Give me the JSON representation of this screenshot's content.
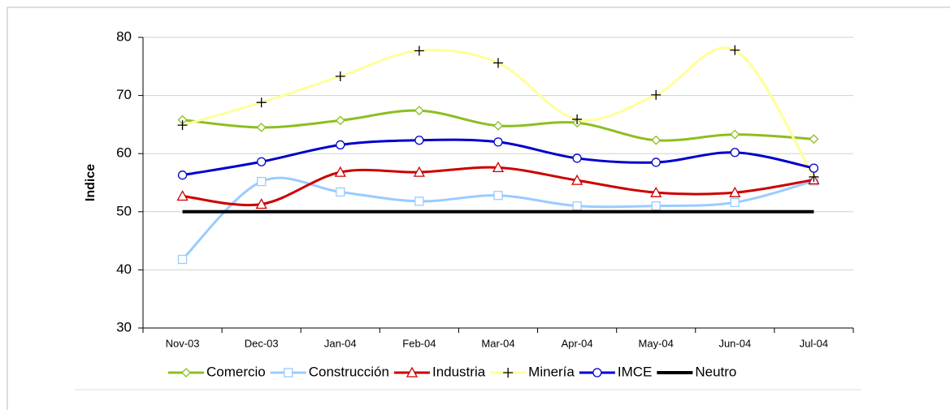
{
  "chart_data": {
    "type": "line",
    "y_label": "Indice",
    "categories": [
      "Nov-03",
      "Dec-03",
      "Jan-04",
      "Feb-04",
      "Mar-04",
      "Apr-04",
      "May-04",
      "Jun-04",
      "Jul-04"
    ],
    "series": [
      {
        "name": "Comercio",
        "color": "#8cbf1f",
        "marker": "diamond",
        "values": [
          65.8,
          64.5,
          65.7,
          67.4,
          64.8,
          65.3,
          62.3,
          63.3,
          62.5
        ]
      },
      {
        "name": "Construcción",
        "color": "#99ccff",
        "marker": "square",
        "values": [
          41.8,
          55.2,
          53.4,
          51.8,
          52.8,
          51.0,
          51.0,
          51.6,
          55.3
        ]
      },
      {
        "name": "Industria",
        "color": "#cc0000",
        "marker": "triangle",
        "values": [
          52.7,
          51.3,
          56.8,
          56.8,
          57.6,
          55.4,
          53.3,
          53.3,
          55.5
        ]
      },
      {
        "name": "Minería",
        "color": "#ffff99",
        "marker": "plus",
        "values": [
          64.9,
          68.8,
          73.3,
          77.7,
          75.6,
          65.9,
          70.1,
          77.8,
          56.0
        ]
      },
      {
        "name": "IMCE",
        "color": "#0000cc",
        "marker": "circle",
        "values": [
          56.3,
          58.6,
          61.5,
          62.3,
          62.0,
          59.2,
          58.5,
          60.2,
          57.5
        ]
      },
      {
        "name": "Neutro",
        "color": "#000000",
        "marker": "none",
        "values": [
          50,
          50,
          50,
          50,
          50,
          50,
          50,
          50,
          50
        ]
      }
    ],
    "ylim": [
      30,
      80
    ],
    "yticks": [
      30,
      40,
      50,
      60,
      70,
      80
    ],
    "grid": true,
    "smooth": true,
    "legend": "bottom"
  }
}
